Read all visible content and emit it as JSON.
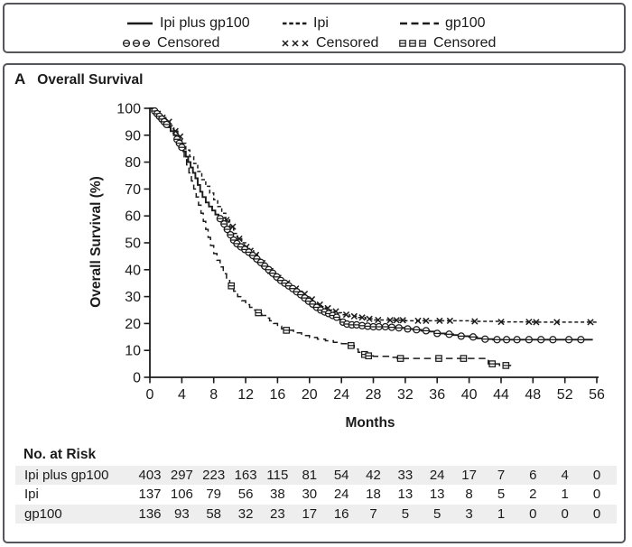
{
  "colors": {
    "ink": "#1b1b1b",
    "frame_border": "#55565a",
    "stripe": "#eeeeee",
    "background": "#ffffff"
  },
  "legend": {
    "series": [
      {
        "label": "Ipi plus gp100",
        "censored_label": "Censored",
        "line": "solid",
        "marker": "circle-hline"
      },
      {
        "label": "Ipi",
        "censored_label": "Censored",
        "line": "dash-short",
        "marker": "x"
      },
      {
        "label": "gp100",
        "censored_label": "Censored",
        "line": "dash-long",
        "marker": "square-hline"
      }
    ]
  },
  "panel": {
    "letter": "A",
    "title": "Overall Survival"
  },
  "chart_data": {
    "type": "line",
    "subtype": "kaplan-meier-step",
    "title": "Overall Survival",
    "xlabel": "Months",
    "ylabel": "Overall Survival (%)",
    "xlim": [
      0,
      56
    ],
    "ylim": [
      0,
      100
    ],
    "x_ticks": [
      0,
      4,
      8,
      12,
      16,
      20,
      24,
      28,
      32,
      36,
      40,
      44,
      48,
      52,
      56
    ],
    "y_ticks": [
      0,
      10,
      20,
      30,
      40,
      50,
      60,
      70,
      80,
      90,
      100
    ],
    "grid": false,
    "legend_position": "top",
    "series": [
      {
        "name": "gp100",
        "line": "dash-long",
        "marker": "square-hline",
        "points": [
          [
            0,
            100
          ],
          [
            0.5,
            99
          ],
          [
            1,
            97.5
          ],
          [
            1.5,
            96
          ],
          [
            2,
            94.5
          ],
          [
            2.5,
            92.5
          ],
          [
            3,
            90.5
          ],
          [
            3.5,
            88
          ],
          [
            4,
            85
          ],
          [
            4.3,
            82
          ],
          [
            4.6,
            79
          ],
          [
            4.9,
            76
          ],
          [
            5.2,
            73
          ],
          [
            5.5,
            70
          ],
          [
            5.8,
            67
          ],
          [
            6.1,
            64
          ],
          [
            6.4,
            61
          ],
          [
            6.7,
            58
          ],
          [
            7,
            55
          ],
          [
            7.3,
            52
          ],
          [
            7.6,
            49
          ],
          [
            8,
            46
          ],
          [
            8.4,
            43.5
          ],
          [
            8.8,
            41
          ],
          [
            9.2,
            38.5
          ],
          [
            9.6,
            36
          ],
          [
            10,
            34
          ],
          [
            10.5,
            32
          ],
          [
            11,
            30
          ],
          [
            11.5,
            28.5
          ],
          [
            12,
            27
          ],
          [
            12.5,
            26
          ],
          [
            13,
            25
          ],
          [
            13.5,
            24
          ],
          [
            14,
            23
          ],
          [
            14.5,
            22
          ],
          [
            15,
            21
          ],
          [
            15.5,
            20
          ],
          [
            16,
            19
          ],
          [
            16.5,
            18
          ],
          [
            17,
            17.5
          ],
          [
            18,
            16.5
          ],
          [
            19,
            15.5
          ],
          [
            20,
            14.8
          ],
          [
            21,
            14.2
          ],
          [
            22,
            13.6
          ],
          [
            23,
            13
          ],
          [
            24,
            12.5
          ],
          [
            25,
            11.8
          ],
          [
            25.6,
            10.5
          ],
          [
            26.1,
            9.3
          ],
          [
            26.6,
            8.5
          ],
          [
            27.1,
            8
          ],
          [
            28,
            7.8
          ],
          [
            30,
            7.4
          ],
          [
            31,
            7
          ],
          [
            42.2,
            7
          ],
          [
            42.4,
            5
          ],
          [
            43.8,
            4.4
          ],
          [
            45.6,
            4.4
          ]
        ],
        "censor_months": [
          10.2,
          13.6,
          17.1,
          25.2,
          26.9,
          27.4,
          31.4,
          36.2,
          39.3,
          42.9,
          44.6
        ]
      },
      {
        "name": "Ipi",
        "line": "dash-short",
        "marker": "x",
        "points": [
          [
            0,
            100
          ],
          [
            0.5,
            99
          ],
          [
            1,
            98
          ],
          [
            1.5,
            96.5
          ],
          [
            2,
            95
          ],
          [
            2.5,
            93.5
          ],
          [
            3,
            91.5
          ],
          [
            3.5,
            89.5
          ],
          [
            4,
            87
          ],
          [
            4.5,
            84.5
          ],
          [
            5,
            82
          ],
          [
            5.5,
            79.5
          ],
          [
            6,
            76.5
          ],
          [
            6.5,
            73.5
          ],
          [
            7,
            71
          ],
          [
            7.5,
            68.5
          ],
          [
            8,
            66
          ],
          [
            8.5,
            63.5
          ],
          [
            9,
            61
          ],
          [
            9.5,
            58.5
          ],
          [
            10,
            56
          ],
          [
            10.5,
            53.5
          ],
          [
            11,
            51.5
          ],
          [
            11.5,
            50
          ],
          [
            12,
            48.5
          ],
          [
            12.5,
            47
          ],
          [
            13,
            45.5
          ],
          [
            13.5,
            44
          ],
          [
            14,
            42.5
          ],
          [
            14.5,
            41
          ],
          [
            15,
            39.5
          ],
          [
            15.5,
            38
          ],
          [
            16,
            37
          ],
          [
            16.5,
            36
          ],
          [
            17,
            35
          ],
          [
            17.5,
            34
          ],
          [
            18,
            33
          ],
          [
            18.5,
            32
          ],
          [
            19,
            31
          ],
          [
            19.5,
            30
          ],
          [
            20,
            29
          ],
          [
            20.5,
            28
          ],
          [
            21,
            27
          ],
          [
            21.5,
            26.3
          ],
          [
            22,
            25.7
          ],
          [
            22.5,
            25
          ],
          [
            23,
            24.5
          ],
          [
            23.5,
            24
          ],
          [
            24,
            23.3
          ],
          [
            25,
            22.7
          ],
          [
            26,
            22.2
          ],
          [
            27,
            21.7
          ],
          [
            28,
            21.3
          ],
          [
            30,
            21.2
          ],
          [
            32,
            21
          ],
          [
            36,
            21
          ],
          [
            40,
            20.8
          ],
          [
            44,
            20.6
          ],
          [
            48,
            20.5
          ],
          [
            56,
            20.5
          ]
        ],
        "censor_months": [
          1.0,
          1.6,
          2.4,
          3.2,
          3.8,
          9.6,
          10.4,
          11.2,
          12.1,
          12.6,
          13.3,
          14.1,
          15.1,
          16.1,
          17.2,
          18.3,
          19.4,
          20.3,
          21.3,
          22.3,
          23.3,
          24.6,
          25.6,
          26.6,
          27.5,
          28.6,
          30.1,
          30.9,
          31.7,
          33.6,
          34.6,
          36.3,
          37.6,
          40.7,
          44,
          47.5,
          48.4,
          51,
          55.2
        ]
      },
      {
        "name": "Ipi plus gp100",
        "line": "solid",
        "marker": "circle-hline",
        "points": [
          [
            0,
            100
          ],
          [
            0.4,
            99
          ],
          [
            0.8,
            98
          ],
          [
            1.1,
            97
          ],
          [
            1.4,
            96
          ],
          [
            1.7,
            95
          ],
          [
            2,
            94
          ],
          [
            2.3,
            93
          ],
          [
            2.6,
            91.5
          ],
          [
            3,
            90
          ],
          [
            3.3,
            88.5
          ],
          [
            3.6,
            87
          ],
          [
            3.9,
            85.5
          ],
          [
            4.2,
            84
          ],
          [
            4.5,
            82
          ],
          [
            4.8,
            80
          ],
          [
            5.1,
            78
          ],
          [
            5.4,
            76
          ],
          [
            5.7,
            74
          ],
          [
            6,
            71.5
          ],
          [
            6.3,
            69
          ],
          [
            6.6,
            67
          ],
          [
            7,
            65
          ],
          [
            7.4,
            63.5
          ],
          [
            7.8,
            62
          ],
          [
            8.2,
            60.5
          ],
          [
            8.6,
            59
          ],
          [
            9,
            57
          ],
          [
            9.4,
            55
          ],
          [
            9.8,
            53
          ],
          [
            10.2,
            51
          ],
          [
            10.6,
            49.7
          ],
          [
            11,
            48.5
          ],
          [
            11.5,
            47.5
          ],
          [
            12,
            46.5
          ],
          [
            12.5,
            45.3
          ],
          [
            13,
            44
          ],
          [
            13.5,
            42.7
          ],
          [
            14,
            41.3
          ],
          [
            14.5,
            40
          ],
          [
            15,
            38.7
          ],
          [
            15.5,
            37.3
          ],
          [
            16,
            36
          ],
          [
            16.5,
            35
          ],
          [
            17,
            34
          ],
          [
            17.5,
            33
          ],
          [
            18,
            31.8
          ],
          [
            18.5,
            30.7
          ],
          [
            19,
            29.5
          ],
          [
            19.5,
            28.3
          ],
          [
            20,
            27.2
          ],
          [
            20.5,
            26
          ],
          [
            21,
            25
          ],
          [
            21.5,
            24.3
          ],
          [
            22,
            23.7
          ],
          [
            22.5,
            23
          ],
          [
            23,
            22.3
          ],
          [
            23.5,
            21.5
          ],
          [
            24,
            20.5
          ],
          [
            24.5,
            19.8
          ],
          [
            25,
            19.5
          ],
          [
            26,
            19.2
          ],
          [
            27,
            19
          ],
          [
            28,
            18.8
          ],
          [
            30,
            18.6
          ],
          [
            31,
            18.4
          ],
          [
            32,
            18
          ],
          [
            33,
            17.7
          ],
          [
            34,
            17.3
          ],
          [
            35,
            17
          ],
          [
            36,
            16.3
          ],
          [
            37,
            16
          ],
          [
            38,
            15.7
          ],
          [
            39,
            15.3
          ],
          [
            40,
            15
          ],
          [
            41,
            14.5
          ],
          [
            42,
            14.2
          ],
          [
            43,
            14
          ],
          [
            55.5,
            14
          ]
        ],
        "censor_months": [
          0.6,
          0.9,
          1.2,
          1.5,
          1.8,
          2.1,
          3.4,
          3.7,
          4.0,
          8.8,
          9.3,
          9.7,
          10.1,
          10.5,
          10.9,
          11.4,
          11.9,
          12.4,
          12.9,
          13.4,
          13.9,
          14.4,
          14.9,
          15.4,
          15.9,
          16.4,
          16.9,
          17.4,
          17.9,
          18.4,
          18.9,
          19.4,
          19.9,
          20.4,
          20.9,
          21.4,
          21.9,
          22.4,
          22.9,
          23.4,
          24.2,
          24.7,
          25.3,
          25.9,
          26.6,
          27.3,
          28,
          28.7,
          29.5,
          30.3,
          31.2,
          32.3,
          33.4,
          34.6,
          36,
          37.5,
          39,
          40.5,
          42,
          43.5,
          44.7,
          46,
          47.5,
          49,
          50.5,
          52.5,
          54
        ]
      }
    ]
  },
  "at_risk": {
    "title": "No. at Risk",
    "months": [
      0,
      4,
      8,
      12,
      16,
      20,
      24,
      28,
      32,
      36,
      40,
      44,
      48,
      52,
      56
    ],
    "rows": [
      {
        "label": "Ipi plus gp100",
        "values": [
          403,
          297,
          223,
          163,
          115,
          81,
          54,
          42,
          33,
          24,
          17,
          7,
          6,
          4,
          0
        ]
      },
      {
        "label": "Ipi",
        "values": [
          137,
          106,
          79,
          56,
          38,
          30,
          24,
          18,
          13,
          13,
          8,
          5,
          2,
          1,
          0
        ]
      },
      {
        "label": "gp100",
        "values": [
          136,
          93,
          58,
          32,
          23,
          17,
          16,
          7,
          5,
          5,
          3,
          1,
          0,
          0,
          0
        ]
      }
    ]
  }
}
